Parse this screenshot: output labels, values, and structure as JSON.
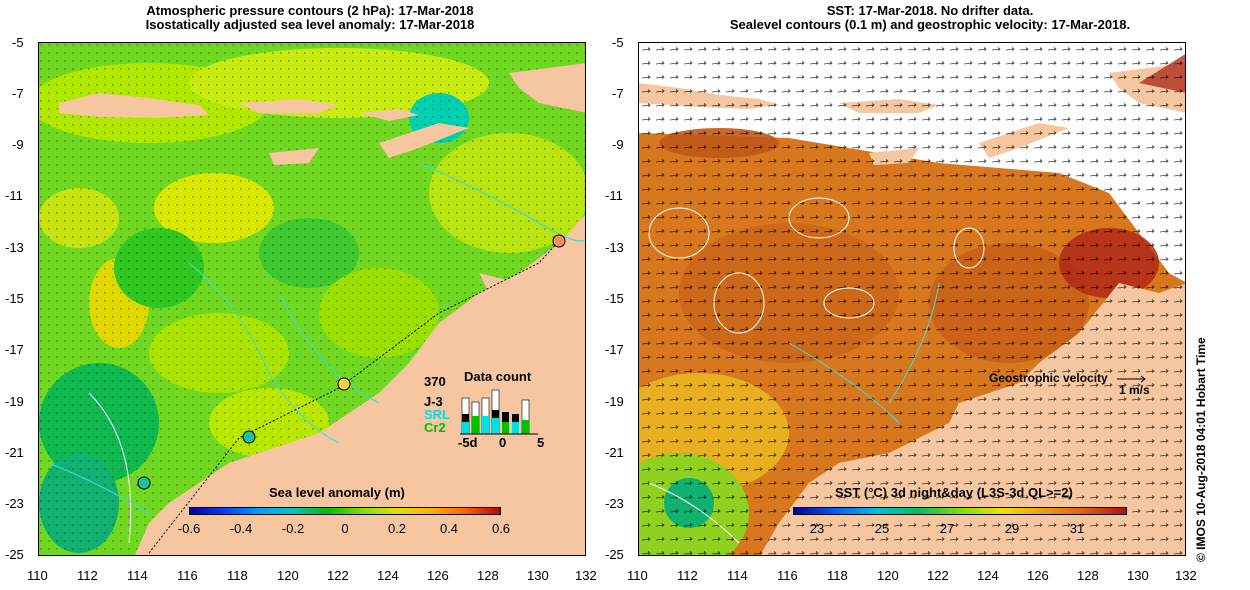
{
  "left_panel": {
    "title_line1": "Atmospheric pressure contours (2 hPa): 17-Mar-2018",
    "title_line2": "Isostatically adjusted sea level anomaly: 17-Mar-2018",
    "colorbar": {
      "label": "Sea level anomaly (m)",
      "ticks": [
        "-0.6",
        "-0.4",
        "-0.2",
        "0",
        "0.2",
        "0.4",
        "0.6"
      ]
    },
    "data_count": {
      "title": "Data count",
      "max": "370",
      "series": [
        "J-3",
        "SRL",
        "Cr2"
      ],
      "series_colors": [
        "#000000",
        "#00e0e0",
        "#00c000"
      ],
      "x_ticks": [
        "-5d",
        "0",
        "5"
      ]
    }
  },
  "right_panel": {
    "title_line1": "SST: 17-Mar-2018. No drifter data.",
    "title_line2": "Sealevel contours (0.1 m) and geostrophic velocity: 17-Mar-2018.",
    "colorbar": {
      "label": "SST (°C) 3d night&day (L3S-3d QL>=2)",
      "ticks": [
        "23",
        "25",
        "27",
        "29",
        "31"
      ]
    },
    "velocity_legend": {
      "label": "Geostrophic velocity",
      "scale": "1 m/s"
    }
  },
  "axes": {
    "lat_ticks": [
      "-5",
      "-7",
      "-9",
      "-11",
      "-13",
      "-15",
      "-17",
      "-19",
      "-21",
      "-23",
      "-25"
    ],
    "lon_ticks": [
      "110",
      "112",
      "114",
      "116",
      "118",
      "120",
      "122",
      "124",
      "126",
      "128",
      "130",
      "132"
    ]
  },
  "credit": "© IMOS 10-Aug-2018 04:01 Hobart Time",
  "colors": {
    "land": "#f6c6a0",
    "sla_low": "#00d000",
    "sla_mid": "#90e800",
    "sst_warm": "#d8781e",
    "sst_cool": "#e8c020",
    "contour": "#40d8e0"
  }
}
